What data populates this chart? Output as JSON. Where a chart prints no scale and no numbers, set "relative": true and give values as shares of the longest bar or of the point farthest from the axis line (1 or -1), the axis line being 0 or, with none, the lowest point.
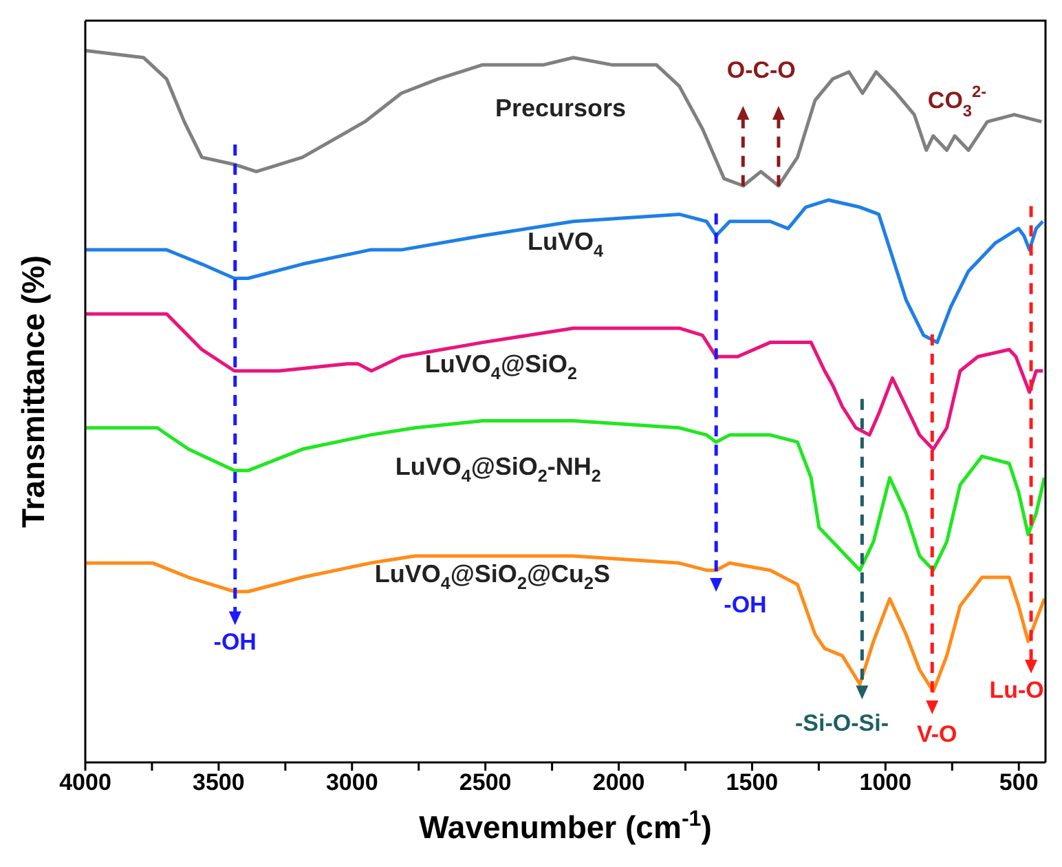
{
  "chart_data": {
    "type": "line",
    "relative": true,
    "xlabel": "Wavenumber (cm$^{-1}$)",
    "ylabel": "Transmittance (%)",
    "xlim": [
      4000,
      400
    ],
    "xticks": [
      4000,
      {
        "value": 3750,
        "label": null
      },
      3500,
      {
        "value": 3250,
        "label": null
      },
      3000,
      {
        "value": 2750,
        "label": null
      },
      2500,
      {
        "value": 2250,
        "label": null
      },
      2000,
      {
        "value": 1750,
        "label": null
      },
      1500,
      {
        "value": 1250,
        "label": null
      },
      1000,
      {
        "value": 750,
        "label": null
      },
      500
    ],
    "series": [
      {
        "name": "Precursors",
        "color": "#808080",
        "x": [
          4000,
          3781,
          3695,
          3629,
          3563,
          3441,
          3359,
          3186,
          2952,
          2815,
          2678,
          2510,
          2281,
          2170,
          2027,
          1859,
          1773,
          1686,
          1605,
          1533,
          1467,
          1401,
          1330,
          1264,
          1198,
          1137,
          1086,
          1035,
          959,
          892,
          847,
          821,
          770,
          740,
          689,
          618,
          517,
          415
        ],
        "values": [
          1,
          0.99,
          0.96,
          0.9,
          0.85,
          0.84,
          0.83,
          0.85,
          0.9,
          0.94,
          0.96,
          0.98,
          0.98,
          0.99,
          0.98,
          0.98,
          0.95,
          0.89,
          0.82,
          0.81,
          0.83,
          0.81,
          0.85,
          0.93,
          0.96,
          0.97,
          0.94,
          0.97,
          0.94,
          0.91,
          0.86,
          0.88,
          0.86,
          0.88,
          0.86,
          0.9,
          0.91,
          0.9
        ]
      },
      {
        "name": "LuVO$_{4}$",
        "color": "#1f7fe6",
        "x": [
          4000,
          3695,
          3563,
          3441,
          3390,
          3186,
          2932,
          2815,
          2510,
          2170,
          1773,
          1671,
          1635,
          1584,
          1432,
          1365,
          1299,
          1213,
          1096,
          1025,
          974,
          923,
          857,
          806,
          755,
          689,
          587,
          501,
          481,
          460,
          435,
          410
        ],
        "values": [
          0.72,
          0.72,
          0.7,
          0.68,
          0.68,
          0.7,
          0.72,
          0.72,
          0.74,
          0.76,
          0.77,
          0.76,
          0.74,
          0.76,
          0.76,
          0.75,
          0.78,
          0.79,
          0.78,
          0.77,
          0.71,
          0.65,
          0.6,
          0.59,
          0.64,
          0.69,
          0.73,
          0.75,
          0.74,
          0.72,
          0.75,
          0.76
        ]
      },
      {
        "name": "LuVO$_{4}$@SiO$_{2}$",
        "color": "#e8157d",
        "x": [
          4000,
          3695,
          3563,
          3441,
          3273,
          3018,
          2978,
          2927,
          2815,
          2510,
          2170,
          1773,
          1686,
          1635,
          1554,
          1432,
          1365,
          1279,
          1228,
          1198,
          1162,
          1111,
          1060,
          1025,
          974,
          923,
          872,
          821,
          770,
          720,
          653,
          536,
          511,
          460,
          435,
          410
        ],
        "values": [
          0.63,
          0.63,
          0.58,
          0.55,
          0.55,
          0.56,
          0.56,
          0.55,
          0.57,
          0.59,
          0.61,
          0.61,
          0.6,
          0.57,
          0.57,
          0.59,
          0.59,
          0.59,
          0.55,
          0.53,
          0.5,
          0.47,
          0.46,
          0.49,
          0.54,
          0.5,
          0.46,
          0.44,
          0.47,
          0.55,
          0.57,
          0.58,
          0.57,
          0.52,
          0.55,
          0.55
        ]
      },
      {
        "name": "LuVO$_{4}$@SiO$_{2}$-NH$_{2}$",
        "color": "#22e622",
        "x": [
          4000,
          3730,
          3613,
          3441,
          3390,
          3186,
          2932,
          2764,
          2510,
          2170,
          1773,
          1671,
          1635,
          1584,
          1432,
          1330,
          1279,
          1249,
          1198,
          1096,
          1045,
          984,
          923,
          872,
          821,
          770,
          720,
          638,
          536,
          501,
          465,
          435,
          404
        ],
        "values": [
          0.47,
          0.47,
          0.44,
          0.41,
          0.41,
          0.44,
          0.46,
          0.47,
          0.48,
          0.48,
          0.47,
          0.46,
          0.45,
          0.46,
          0.46,
          0.45,
          0.4,
          0.33,
          0.31,
          0.27,
          0.31,
          0.4,
          0.35,
          0.29,
          0.27,
          0.31,
          0.39,
          0.43,
          0.42,
          0.38,
          0.32,
          0.35,
          0.4
        ]
      },
      {
        "name": "LuVO$_{4}$@SiO$_{2}$@Cu$_{2}$S",
        "color": "#ff8c1a",
        "x": [
          4000,
          3746,
          3613,
          3441,
          3390,
          3186,
          2932,
          2764,
          2510,
          2170,
          1773,
          1671,
          1635,
          1584,
          1432,
          1330,
          1264,
          1228,
          1162,
          1096,
          1045,
          984,
          923,
          872,
          821,
          770,
          720,
          638,
          536,
          501,
          465,
          435,
          404
        ],
        "values": [
          0.28,
          0.28,
          0.26,
          0.24,
          0.24,
          0.26,
          0.28,
          0.29,
          0.29,
          0.29,
          0.28,
          0.27,
          0.27,
          0.28,
          0.27,
          0.25,
          0.18,
          0.16,
          0.15,
          0.11,
          0.17,
          0.23,
          0.18,
          0.13,
          0.1,
          0.15,
          0.22,
          0.26,
          0.26,
          0.22,
          0.17,
          0.2,
          0.23
        ]
      }
    ],
    "annotations": [
      "-OH",
      "-OH",
      "O-C-O",
      "CO$_{3}$$^{2-}$",
      "-Si-O-Si-",
      "V-O",
      "Lu-O"
    ]
  }
}
